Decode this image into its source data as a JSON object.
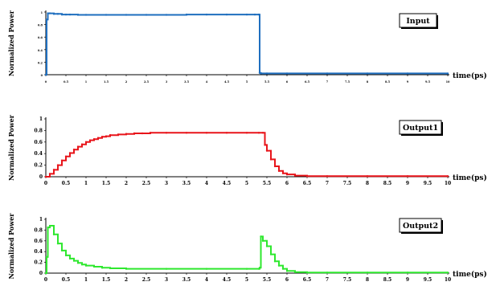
{
  "chart_data": [
    {
      "type": "line",
      "legend": "Input",
      "ylabel": "Normalized Power",
      "xlabel": "time(ps)",
      "color": "#1f6fbf",
      "xlim": [
        0,
        10
      ],
      "ylim": [
        0,
        1
      ],
      "x_ticks": [
        "0",
        "0.5",
        "1",
        "1.5",
        "2",
        "2.5",
        "3",
        "3.5",
        "4",
        "4.5",
        "5",
        "5.5",
        "6",
        "6.5",
        "7",
        "7.5",
        "8",
        "8.5",
        "9",
        "9.5",
        "10"
      ],
      "y_ticks": [
        "0",
        "0.2",
        "0.4",
        "0.6",
        "0.8",
        "1"
      ],
      "tick_labels_legible": false,
      "x": [
        0,
        0.02,
        0.05,
        0.1,
        0.2,
        0.3,
        0.4,
        0.5,
        0.6,
        0.8,
        1.0,
        1.5,
        2.0,
        2.5,
        3.0,
        3.5,
        4.0,
        4.5,
        5.0,
        5.2,
        5.3,
        5.32,
        5.35,
        5.5,
        6,
        7,
        8,
        9,
        10
      ],
      "y": [
        0,
        0.88,
        0.98,
        0.98,
        0.97,
        0.97,
        0.96,
        0.96,
        0.96,
        0.955,
        0.955,
        0.955,
        0.955,
        0.955,
        0.955,
        0.96,
        0.96,
        0.96,
        0.96,
        0.96,
        0.96,
        0.03,
        0.02,
        0.02,
        0.02,
        0.02,
        0.02,
        0.02,
        0.02
      ]
    },
    {
      "type": "line",
      "legend": "Output1",
      "ylabel": "Normalized Power",
      "xlabel": "time(ps)",
      "color": "#e8141a",
      "xlim": [
        0,
        10
      ],
      "ylim": [
        0,
        1
      ],
      "x_ticks": [
        "0",
        "0.5",
        "1",
        "1.5",
        "2",
        "2.5",
        "3",
        "3.5",
        "4",
        "4.5",
        "5",
        "5.5",
        "6",
        "6.5",
        "7",
        "7.5",
        "8",
        "8.5",
        "9",
        "9.5",
        "10"
      ],
      "y_ticks": [
        "0",
        "0.2",
        "0.4",
        "0.6",
        "0.8",
        "1"
      ],
      "tick_labels_legible": true,
      "x": [
        0,
        0.1,
        0.2,
        0.3,
        0.4,
        0.5,
        0.6,
        0.7,
        0.8,
        0.9,
        1.0,
        1.1,
        1.2,
        1.3,
        1.4,
        1.5,
        1.6,
        1.8,
        2.0,
        2.2,
        2.4,
        2.6,
        3.0,
        3.5,
        4.0,
        4.5,
        5.0,
        5.3,
        5.4,
        5.45,
        5.5,
        5.6,
        5.7,
        5.8,
        5.9,
        6.0,
        6.2,
        6.5,
        7,
        8,
        9,
        10
      ],
      "y": [
        0,
        0.05,
        0.12,
        0.2,
        0.28,
        0.35,
        0.41,
        0.47,
        0.52,
        0.56,
        0.6,
        0.63,
        0.65,
        0.67,
        0.69,
        0.7,
        0.72,
        0.73,
        0.74,
        0.75,
        0.75,
        0.76,
        0.76,
        0.76,
        0.76,
        0.76,
        0.76,
        0.76,
        0.76,
        0.55,
        0.45,
        0.3,
        0.18,
        0.1,
        0.06,
        0.04,
        0.02,
        0.01,
        0.01,
        0.01,
        0.01,
        0.01
      ]
    },
    {
      "type": "line",
      "legend": "Output2",
      "ylabel": "Normalized Power",
      "xlabel": "time(ps)",
      "color": "#2ee82e",
      "xlim": [
        0,
        10
      ],
      "ylim": [
        0,
        1
      ],
      "x_ticks": [
        "0",
        "0.5",
        "1",
        "1.5",
        "2",
        "2.5",
        "3",
        "3.5",
        "4",
        "4.5",
        "5",
        "5.5",
        "6",
        "6.5",
        "7",
        "7.5",
        "8",
        "8.5",
        "9",
        "9.5",
        "10"
      ],
      "y_ticks": [
        "0",
        "0.2",
        "0.4",
        "0.6",
        "0.8",
        "1"
      ],
      "tick_labels_legible": true,
      "x": [
        0,
        0.02,
        0.05,
        0.1,
        0.2,
        0.3,
        0.4,
        0.5,
        0.6,
        0.7,
        0.8,
        0.9,
        1.0,
        1.2,
        1.4,
        1.6,
        2.0,
        3.0,
        4.0,
        5.0,
        5.3,
        5.32,
        5.35,
        5.4,
        5.5,
        5.6,
        5.7,
        5.8,
        5.9,
        6.0,
        6.2,
        6.5,
        7,
        8,
        9,
        10
      ],
      "y": [
        0,
        0.3,
        0.85,
        0.88,
        0.72,
        0.55,
        0.42,
        0.33,
        0.27,
        0.23,
        0.19,
        0.16,
        0.14,
        0.12,
        0.1,
        0.09,
        0.08,
        0.08,
        0.08,
        0.08,
        0.08,
        0.1,
        0.68,
        0.6,
        0.5,
        0.35,
        0.22,
        0.14,
        0.08,
        0.04,
        0.02,
        0.01,
        0.01,
        0.01,
        0.01,
        0.01
      ]
    }
  ]
}
